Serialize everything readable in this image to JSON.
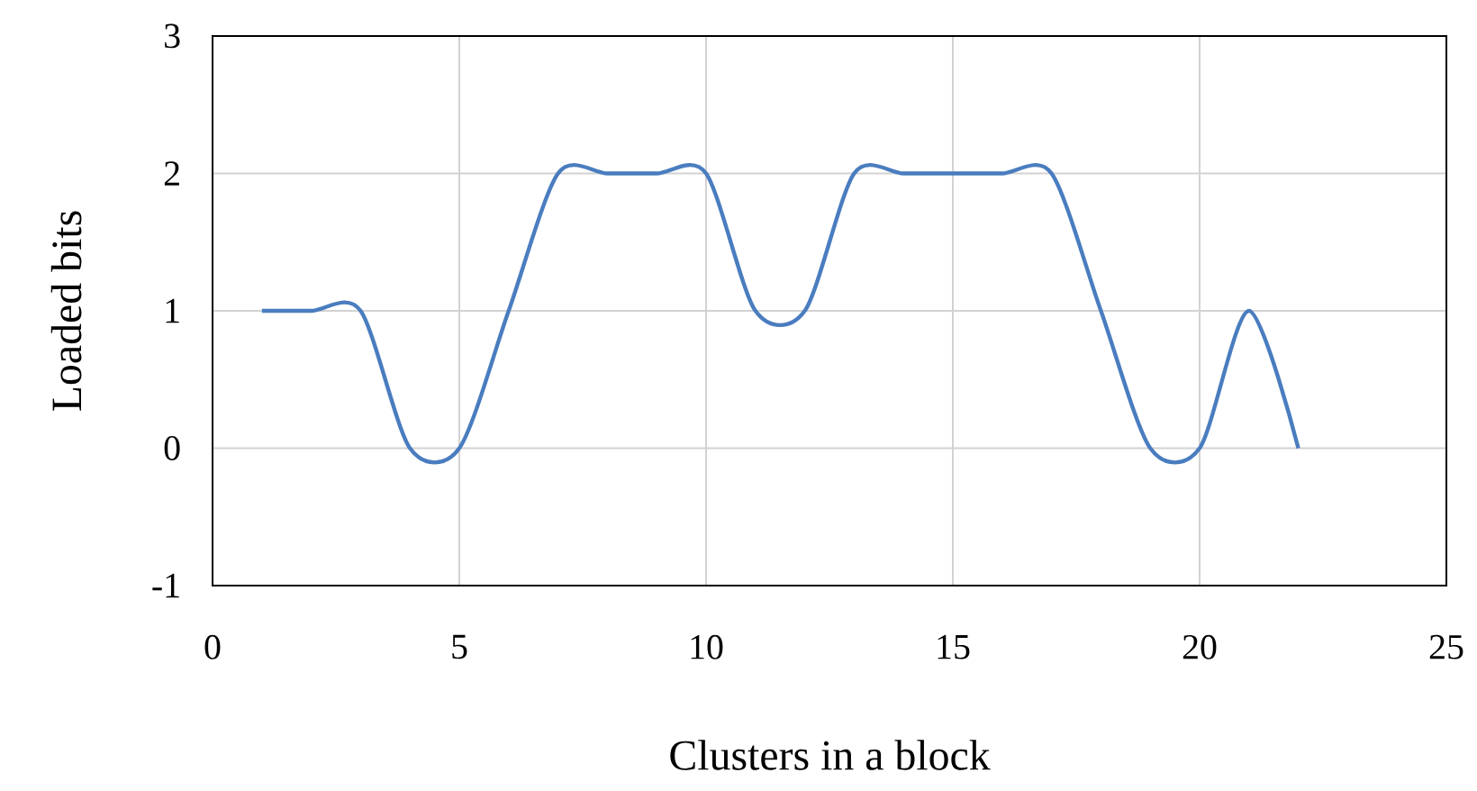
{
  "chart_data": {
    "type": "line",
    "xlabel": "Clusters in a block",
    "ylabel": "Loaded bits",
    "x": [
      1,
      2,
      3,
      4,
      5,
      6,
      7,
      8,
      9,
      10,
      11,
      12,
      13,
      14,
      15,
      16,
      17,
      18,
      19,
      20,
      21,
      22
    ],
    "series": [
      {
        "color": "#4a7dbf",
        "values": [
          1,
          1,
          1,
          0,
          0,
          1,
          2,
          2,
          2,
          2,
          1,
          1,
          2,
          2,
          2,
          2,
          2,
          1,
          0,
          0,
          1,
          0
        ]
      }
    ],
    "xlim": [
      0,
      25
    ],
    "ylim": [
      -1,
      3
    ],
    "xticks": [
      0,
      5,
      10,
      15,
      20,
      25
    ],
    "yticks": [
      -1,
      0,
      1,
      2,
      3
    ],
    "grid": true,
    "marker": "none",
    "line_style": "solid"
  }
}
